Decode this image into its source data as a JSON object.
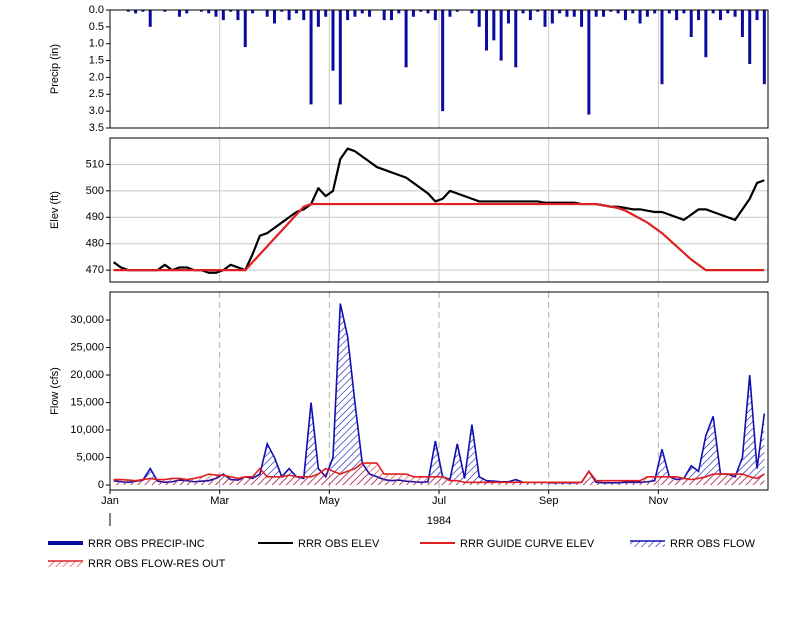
{
  "chart_data": [
    {
      "type": "bar",
      "ylabel": "Precip (in)",
      "ylim": [
        3.5,
        0
      ],
      "yticks": [
        {
          "value": 0,
          "label": "0.0"
        },
        0.5,
        {
          "value": 1,
          "label": "1.0"
        },
        1.5,
        {
          "value": 2,
          "label": "2.0"
        },
        2.5,
        {
          "value": 3,
          "label": "3.0"
        },
        {
          "value": 3.5,
          "label": "3.5"
        }
      ],
      "grid": true,
      "series": [
        {
          "name": "RRR OBS PRECIP-INC",
          "color": "#0a0aa0",
          "values": [
            0,
            0,
            0.05,
            0.1,
            0.05,
            0.5,
            0,
            0.05,
            0,
            0.2,
            0.1,
            0,
            0.05,
            0.1,
            0.2,
            0.3,
            0.05,
            0.3,
            1.1,
            0.1,
            0,
            0.2,
            0.4,
            0.05,
            0.3,
            0.1,
            0.3,
            2.8,
            0.5,
            0.2,
            1.8,
            2.8,
            0.3,
            0.2,
            0.1,
            0.2,
            0,
            0.3,
            0.3,
            0.1,
            1.7,
            0.2,
            0.05,
            0.1,
            0.3,
            3.0,
            0.2,
            0.05,
            0,
            0.1,
            0.5,
            1.2,
            0.9,
            1.5,
            0.4,
            1.7,
            0.1,
            0.3,
            0.05,
            0.5,
            0.4,
            0.1,
            0.2,
            0.2,
            0.5,
            3.1,
            0.2,
            0.2,
            0.05,
            0.1,
            0.3,
            0.1,
            0.4,
            0.2,
            0.1,
            2.2,
            0.1,
            0.3,
            0.1,
            0.8,
            0.3,
            1.4,
            0.1,
            0.3,
            0.1,
            0.2,
            0.8,
            1.6,
            0.3,
            2.2
          ]
        }
      ]
    },
    {
      "type": "line",
      "ylabel": "Elev (ft)",
      "ylim": [
        465.5,
        520
      ],
      "yticks": [
        470,
        480,
        490,
        500,
        510
      ],
      "grid": true,
      "series": [
        {
          "name": "RRR OBS ELEV",
          "color": "#000000",
          "values": [
            473,
            471,
            470,
            470,
            470,
            470,
            470,
            472,
            470,
            471,
            471,
            470,
            470,
            469,
            469,
            470,
            472,
            471,
            470,
            476,
            483,
            484,
            486,
            488,
            490,
            492,
            493,
            495,
            501,
            498,
            500,
            512,
            516,
            515,
            513,
            511,
            509,
            508,
            507,
            506,
            505,
            503,
            501,
            499,
            496,
            497,
            500,
            499,
            498,
            497,
            496,
            496,
            496,
            496,
            496,
            496,
            496,
            496,
            496,
            495.5,
            495.5,
            495.5,
            495.5,
            495.5,
            495,
            495,
            495,
            494.5,
            494,
            494,
            493.5,
            493,
            493,
            492.5,
            492,
            492,
            491,
            490,
            489,
            491,
            493,
            493,
            492,
            491,
            490,
            489,
            493,
            497,
            503,
            504
          ]
        },
        {
          "name": "RRR GUIDE CURVE ELEV",
          "color": "#e02020",
          "values": [
            470,
            470,
            470,
            470,
            470,
            470,
            470,
            470,
            470,
            470,
            470,
            470,
            470,
            470,
            470,
            470,
            470,
            470,
            470,
            473,
            476,
            479,
            482,
            485,
            488,
            491,
            494,
            495,
            495,
            495,
            495,
            495,
            495,
            495,
            495,
            495,
            495,
            495,
            495,
            495,
            495,
            495,
            495,
            495,
            495,
            495,
            495,
            495,
            495,
            495,
            495,
            495,
            495,
            495,
            495,
            495,
            495,
            495,
            495,
            495,
            495,
            495,
            495,
            495,
            495,
            495,
            495,
            494.5,
            494,
            493.5,
            492.5,
            491,
            489.5,
            488,
            486,
            484,
            481.5,
            479,
            476.5,
            474,
            472,
            470,
            470,
            470,
            470,
            470,
            470,
            470,
            470,
            470
          ]
        }
      ]
    },
    {
      "type": "area",
      "ylabel": "Flow (cfs)",
      "xlabel": "1984",
      "ylim": [
        -900,
        35100
      ],
      "yticks": [
        0,
        {
          "value": 5000,
          "label": "5,000"
        },
        {
          "value": 10000,
          "label": "10,000"
        },
        {
          "value": 15000,
          "label": "15,000"
        },
        {
          "value": 20000,
          "label": "20,000"
        },
        {
          "value": 25000,
          "label": "25,000"
        },
        {
          "value": 30000,
          "label": "30,000"
        }
      ],
      "grid": true,
      "grid_style": "dashed",
      "categories": [
        "Jan",
        null,
        null,
        null,
        null,
        null,
        null,
        null,
        null,
        null,
        null,
        null,
        null,
        null,
        null,
        "Mar",
        null,
        null,
        null,
        null,
        null,
        null,
        null,
        null,
        null,
        null,
        null,
        null,
        null,
        null,
        "May",
        null,
        null,
        null,
        null,
        null,
        null,
        null,
        null,
        null,
        null,
        null,
        null,
        null,
        null,
        "Jul",
        null,
        null,
        null,
        null,
        null,
        null,
        null,
        null,
        null,
        null,
        null,
        null,
        null,
        null,
        "Sep",
        null,
        null,
        null,
        null,
        null,
        null,
        null,
        null,
        null,
        null,
        null,
        null,
        null,
        null,
        "Nov",
        null,
        null,
        null,
        null,
        null,
        null,
        null,
        null,
        null,
        null,
        null,
        null,
        null,
        null
      ],
      "series": [
        {
          "name": "RRR OBS FLOW",
          "color": "#1010b0",
          "values": [
            800,
            600,
            500,
            700,
            900,
            3000,
            700,
            500,
            600,
            900,
            800,
            600,
            700,
            800,
            1200,
            2000,
            1000,
            900,
            1500,
            1200,
            2000,
            7500,
            5000,
            1500,
            3000,
            1500,
            1200,
            15000,
            3000,
            1500,
            5000,
            33000,
            27000,
            15000,
            4000,
            2000,
            1500,
            1000,
            800,
            900,
            700,
            600,
            500,
            600,
            8000,
            1500,
            1000,
            7500,
            1200,
            11000,
            1500,
            800,
            700,
            600,
            600,
            1000,
            500,
            500,
            500,
            500,
            400,
            400,
            400,
            400,
            500,
            2500,
            500,
            400,
            400,
            400,
            500,
            500,
            500,
            600,
            800,
            6500,
            1500,
            1000,
            1200,
            3500,
            2500,
            9000,
            12500,
            2000,
            2000,
            1500,
            5000,
            20000,
            3000,
            13000
          ]
        },
        {
          "name": "RRR OBS FLOW-RES OUT",
          "color": "#e02020",
          "values": [
            1000,
            1000,
            900,
            800,
            1000,
            1200,
            1000,
            1000,
            1200,
            1200,
            1000,
            1200,
            1500,
            2000,
            1800,
            1800,
            1500,
            1200,
            1500,
            1500,
            3000,
            1500,
            1500,
            1500,
            1800,
            1500,
            1500,
            1500,
            2000,
            3000,
            2500,
            2000,
            2500,
            3000,
            4000,
            4000,
            4000,
            2000,
            2000,
            2000,
            2000,
            1500,
            1500,
            1500,
            1500,
            1500,
            800,
            800,
            500,
            500,
            500,
            500,
            500,
            500,
            500,
            500,
            500,
            500,
            500,
            500,
            500,
            500,
            500,
            500,
            500,
            2500,
            800,
            800,
            800,
            800,
            800,
            800,
            800,
            1500,
            1500,
            1500,
            1500,
            1500,
            1200,
            1000,
            1200,
            1500,
            2000,
            2000,
            2000,
            2000,
            2000,
            1500,
            1200,
            2000
          ]
        }
      ]
    }
  ]
}
